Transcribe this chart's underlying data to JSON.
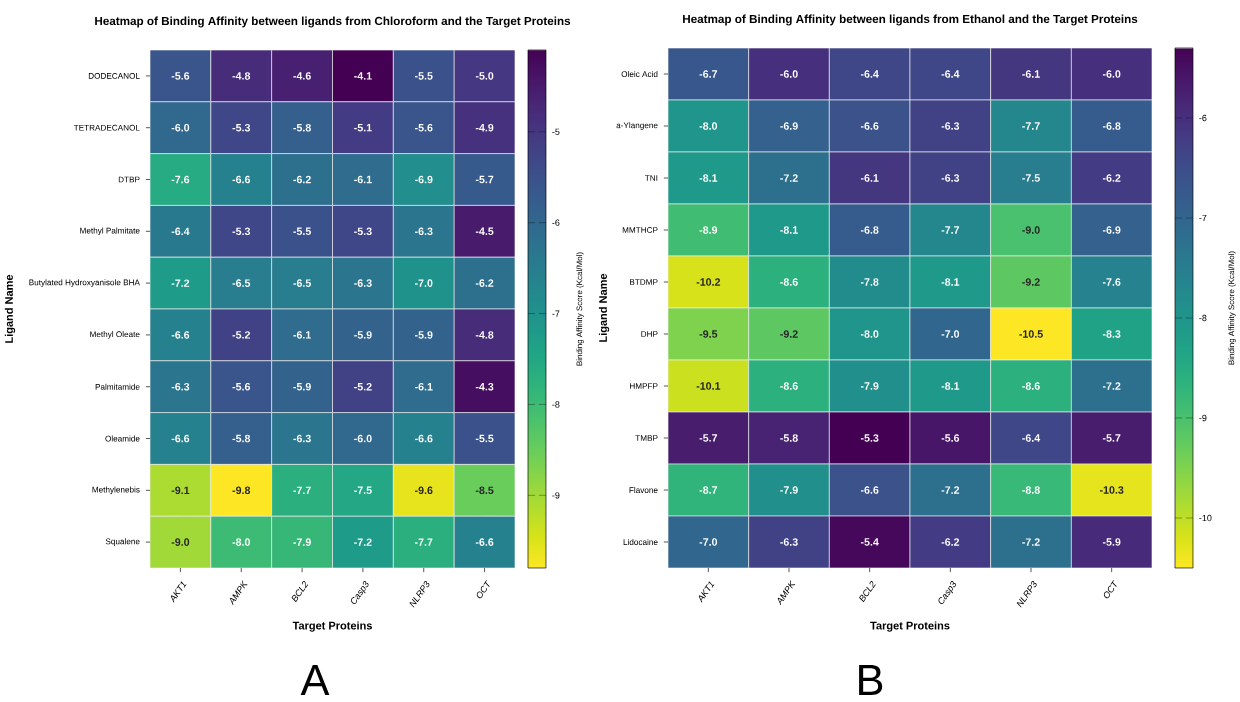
{
  "chart_data": [
    {
      "type": "heatmap",
      "title": "Heatmap of Binding Affinity between ligands from Chloroform and the Target Proteins",
      "xlabel": "Target Proteins",
      "ylabel": "Ligand Name",
      "clabel": "Binding Affinity Score (Kcal/Mol)",
      "categories": [
        "AKT1",
        "AMPK",
        "BCL2",
        "Casp3",
        "NLRP3",
        "OCT"
      ],
      "y_categories": [
        "DODECANOL",
        "TETRADECANOL",
        "DTBP",
        "Methyl Palmitate",
        "Butylated Hydroxyanisole BHA",
        "Methyl Oleate",
        "Palmitamide",
        "Oleamide",
        "Methylenebis",
        "Squalene"
      ],
      "cells": [
        [
          -5.6,
          -4.8,
          -4.6,
          -4.1,
          -5.5,
          -5.0
        ],
        [
          -6.0,
          -5.3,
          -5.8,
          -5.1,
          -5.6,
          -4.9
        ],
        [
          -7.6,
          -6.6,
          -6.2,
          -6.1,
          -6.9,
          -5.7
        ],
        [
          -6.4,
          -5.3,
          -5.5,
          -5.3,
          -6.3,
          -4.5
        ],
        [
          -7.2,
          -6.5,
          -6.5,
          -6.3,
          -7.0,
          -6.2
        ],
        [
          -6.6,
          -5.2,
          -6.1,
          -5.9,
          -5.9,
          -4.8
        ],
        [
          -6.3,
          -5.6,
          -5.9,
          -5.2,
          -6.1,
          -4.3
        ],
        [
          -6.6,
          -5.8,
          -6.3,
          -6.0,
          -6.6,
          -5.5
        ],
        [
          -9.1,
          -9.8,
          -7.7,
          -7.5,
          -9.6,
          -8.5
        ],
        [
          -9.0,
          -8.0,
          -7.9,
          -7.2,
          -7.7,
          -6.6
        ]
      ],
      "cell_labels": [
        [
          "-5.6",
          "-4.8",
          "-4.6",
          "-4.1",
          "-5.5",
          "-5.0"
        ],
        [
          "-6.0",
          "-5.3",
          "-5.8",
          "-5.1",
          "-5.6",
          "-4.9"
        ],
        [
          "-7.6",
          "-6.6",
          "-6.2",
          "-6.1",
          "-6.9",
          "-5.7"
        ],
        [
          "-6.4",
          "-5.3",
          "-5.5",
          "-5.3",
          "-6.3",
          "-4.5"
        ],
        [
          "-7.2",
          "-6.5",
          "-6.5",
          "-6.3",
          "-7.0",
          "-6.2"
        ],
        [
          "-6.6",
          "-5.2",
          "-6.1",
          "-5.9",
          "-5.9",
          "-4.8"
        ],
        [
          "-6.3",
          "-5.6",
          "-5.9",
          "-5.2",
          "-6.1",
          "-4.3"
        ],
        [
          "-6.6",
          "-5.8",
          "-6.3",
          "-6.0",
          "-6.6",
          "-5.5"
        ],
        [
          "-9.1",
          "-9.8",
          "-7.7",
          "-7.5",
          "-9.6",
          "-8.5"
        ],
        [
          "-9.0",
          "-8.0",
          "-7.9",
          "-7.2",
          "-7.7",
          "-6.6"
        ]
      ],
      "data_labels": true,
      "clim": [
        -9.8,
        -4.1
      ],
      "cticks": [
        -9,
        -8,
        -7,
        -6,
        -5
      ],
      "annotations": [
        "A"
      ]
    },
    {
      "type": "heatmap",
      "title": "Heatmap of Binding Affinity between ligands from Ethanol and the Target Proteins",
      "xlabel": "Target Proteins",
      "ylabel": "Ligand Name",
      "clabel": "Binding Affinity Score (Kcal/Mol)",
      "categories": [
        "AKT1",
        "AMPK",
        "BCL2",
        "Casp3",
        "NLRP3",
        "OCT"
      ],
      "y_categories": [
        "Oleic Acid",
        "a-Ylangene",
        "TNI",
        "MMTHCP",
        "BTDMP",
        "DHP",
        "HMPFP",
        "TMBP",
        "Flavone",
        "Lidocaine"
      ],
      "cells": [
        [
          -6.7,
          -6.0,
          -6.4,
          -6.4,
          -6.1,
          -6.0
        ],
        [
          -8.0,
          -6.9,
          -6.6,
          -6.3,
          -7.7,
          -6.8
        ],
        [
          -8.1,
          -7.2,
          -6.1,
          -6.3,
          -7.5,
          -6.2
        ],
        [
          -8.9,
          -8.1,
          -6.8,
          -7.7,
          -9.0,
          -6.9
        ],
        [
          -10.2,
          -8.6,
          -7.8,
          -8.1,
          -9.2,
          -7.6
        ],
        [
          -9.5,
          -9.2,
          -8.0,
          -7.0,
          -10.5,
          -8.3
        ],
        [
          -10.1,
          -8.6,
          -7.9,
          -8.1,
          -8.6,
          -7.2
        ],
        [
          -5.7,
          -5.8,
          -5.3,
          -5.6,
          -6.4,
          -5.7
        ],
        [
          -8.7,
          -7.9,
          -6.6,
          -7.2,
          -8.8,
          -10.3
        ],
        [
          -7.0,
          -6.3,
          -5.4,
          -6.2,
          -7.2,
          -5.9
        ]
      ],
      "cell_labels": [
        [
          "-6.7",
          "-6.0",
          "-6.4",
          "-6.4",
          "-6.1",
          "-6.0"
        ],
        [
          "-8.0",
          "-6.9",
          "-6.6",
          "-6.3",
          "-7.7",
          "-6.8"
        ],
        [
          "-8.1",
          "-7.2",
          "-6.1",
          "-6.3",
          "-7.5",
          "-6.2"
        ],
        [
          "-8.9",
          "-8.1",
          "-6.8",
          "-7.7",
          "-9.0",
          "-6.9"
        ],
        [
          "-10.2",
          "-8.6",
          "-7.8",
          "-8.1",
          "-9.2",
          "-7.6"
        ],
        [
          "-9.5",
          "-9.2",
          "-8.0",
          "-7.0",
          "-10.5",
          "-8.3"
        ],
        [
          "-10.1",
          "-8.6",
          "-7.9",
          "-8.1",
          "-8.6",
          "-7.2"
        ],
        [
          "-5.7",
          "-5.8",
          "-5.3",
          "-5.6",
          "-6.4",
          "-5.7"
        ],
        [
          "-8.7",
          "-7.9",
          "-6.6",
          "-7.2",
          "-8.8",
          "-10.3"
        ],
        [
          "-7.0",
          "-6.3",
          "-5.4",
          "-6.2",
          "-7.2",
          "-5.9"
        ]
      ],
      "data_labels": true,
      "clim": [
        -10.5,
        -5.3
      ],
      "cticks": [
        -10,
        -9,
        -8,
        -7,
        -6
      ],
      "annotations": [
        "B"
      ]
    }
  ]
}
